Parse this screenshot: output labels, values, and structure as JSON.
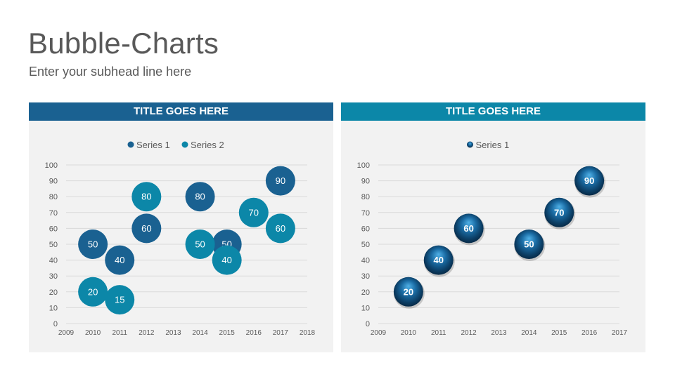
{
  "page": {
    "title": "Bubble-Charts",
    "subtitle": "Enter your subhead line here"
  },
  "colors": {
    "series1": "#1a6191",
    "series2": "#0c87a8",
    "panel_bg": "#f2f2f2",
    "grid": "#d9d9d9"
  },
  "chart_data": [
    {
      "type": "scatter",
      "title": "TITLE GOES HERE",
      "xlim": [
        2009,
        2018
      ],
      "ylim": [
        0,
        100
      ],
      "x_ticks": [
        2009,
        2010,
        2011,
        2012,
        2013,
        2014,
        2015,
        2016,
        2017,
        2018
      ],
      "y_ticks": [
        0,
        10,
        20,
        30,
        40,
        50,
        60,
        70,
        80,
        90,
        100
      ],
      "grid": true,
      "legend_position": "top",
      "series": [
        {
          "name": "Series 1",
          "color": "#1a6191",
          "points": [
            {
              "x": 2010,
              "y": 50,
              "label": "50"
            },
            {
              "x": 2011,
              "y": 40,
              "label": "40"
            },
            {
              "x": 2012,
              "y": 60,
              "label": "60"
            },
            {
              "x": 2014,
              "y": 80,
              "label": "80"
            },
            {
              "x": 2015,
              "y": 50,
              "label": "50"
            },
            {
              "x": 2017,
              "y": 90,
              "label": "90"
            }
          ]
        },
        {
          "name": "Series 2",
          "color": "#0c87a8",
          "points": [
            {
              "x": 2010,
              "y": 20,
              "label": "20"
            },
            {
              "x": 2011,
              "y": 15,
              "label": "15"
            },
            {
              "x": 2012,
              "y": 80,
              "label": "80"
            },
            {
              "x": 2014,
              "y": 50,
              "label": "50"
            },
            {
              "x": 2015,
              "y": 40,
              "label": "40"
            },
            {
              "x": 2016,
              "y": 70,
              "label": "70"
            },
            {
              "x": 2017,
              "y": 60,
              "label": "60"
            }
          ]
        }
      ]
    },
    {
      "type": "scatter",
      "title": "TITLE GOES HERE",
      "xlim": [
        2009,
        2017
      ],
      "ylim": [
        0,
        100
      ],
      "x_ticks": [
        2009,
        2010,
        2011,
        2012,
        2013,
        2014,
        2015,
        2016,
        2017
      ],
      "y_ticks": [
        0,
        10,
        20,
        30,
        40,
        50,
        60,
        70,
        80,
        90,
        100
      ],
      "grid": true,
      "legend_position": "top",
      "series": [
        {
          "name": "Series 1",
          "color": "#1a6191",
          "points": [
            {
              "x": 2010,
              "y": 20,
              "label": "20"
            },
            {
              "x": 2011,
              "y": 40,
              "label": "40"
            },
            {
              "x": 2012,
              "y": 60,
              "label": "60"
            },
            {
              "x": 2014,
              "y": 50,
              "label": "50"
            },
            {
              "x": 2015,
              "y": 70,
              "label": "70"
            },
            {
              "x": 2016,
              "y": 90,
              "label": "90"
            }
          ]
        }
      ]
    }
  ]
}
